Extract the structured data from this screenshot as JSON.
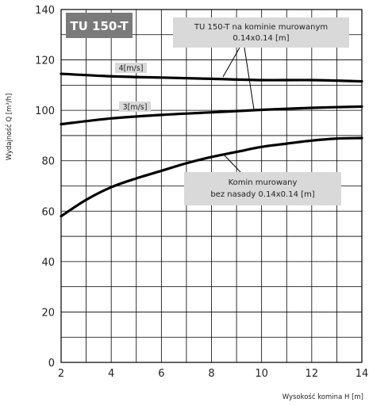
{
  "chart_data": {
    "type": "line",
    "title": "TU 150-T",
    "xlabel": "Wysokość komina H [m]",
    "ylabel": "Wydajność Q [m³/h]",
    "xlim": [
      2,
      14
    ],
    "ylim": [
      0,
      140
    ],
    "xticks": [
      2,
      4,
      6,
      8,
      10,
      12,
      14
    ],
    "yticks": [
      0,
      20,
      40,
      60,
      80,
      100,
      120,
      140
    ],
    "grid": true,
    "series": [
      {
        "name": "4[m/s]",
        "x": [
          2,
          4,
          6,
          8,
          10,
          12,
          14
        ],
        "y": [
          114.5,
          113.5,
          113,
          112.5,
          112,
          112,
          111.5
        ]
      },
      {
        "name": "3[m/s]",
        "x": [
          2,
          4,
          6,
          8,
          10,
          12,
          14
        ],
        "y": [
          94.5,
          96.8,
          98.2,
          99.2,
          100.2,
          101,
          101.5
        ]
      },
      {
        "x": [
          2,
          3,
          4,
          5,
          6,
          7,
          8,
          9,
          10,
          11,
          12,
          13,
          14
        ],
        "y": [
          58,
          64.5,
          69.5,
          73,
          76,
          79,
          81.5,
          83.5,
          85.5,
          86.8,
          88,
          88.8,
          89
        ]
      }
    ],
    "annotations": {
      "top_right": [
        "TU 150-T na kominie murowanym",
        "0.14x0.14 [m]"
      ],
      "bottom_right": [
        "Komin murowany",
        "bez nasady 0.14x0.14 [m]"
      ]
    }
  }
}
